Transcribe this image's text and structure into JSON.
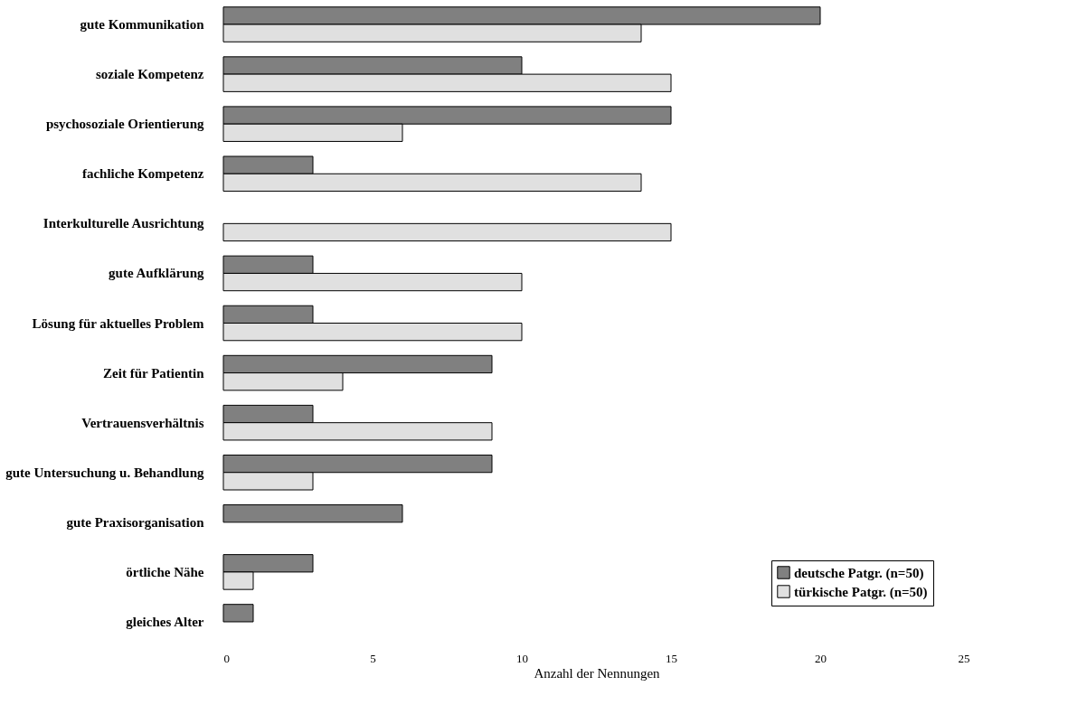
{
  "chart_data": {
    "type": "bar",
    "orientation": "horizontal",
    "xlabel": "Anzahl der Nennungen",
    "categories": [
      "gute Kommunikation",
      "soziale Kompetenz",
      "psychosoziale Orientierung",
      "fachliche Kompetenz",
      "Interkulturelle Ausrichtung",
      "gute Aufklärung",
      "Lösung für aktuelles Problem",
      "Zeit für Patientin",
      "Vertrauensverhältnis",
      "gute Untersuchung u. Behandlung",
      "gute Praxisorganisation",
      "örtliche Nähe",
      "gleiches Alter"
    ],
    "series": [
      {
        "name": "deutsche Patgr. (n=50)",
        "color": "#808080",
        "values": [
          20,
          10,
          15,
          3,
          0,
          3,
          3,
          9,
          3,
          9,
          6,
          3,
          1
        ]
      },
      {
        "name": "türkische Patgr. (n=50)",
        "color": "#e0e0e0",
        "values": [
          14,
          15,
          6,
          14,
          15,
          10,
          10,
          4,
          9,
          3,
          0,
          1,
          0
        ]
      }
    ],
    "xlim": [
      0,
      25
    ],
    "xticks": [
      0,
      5,
      10,
      15,
      20,
      25
    ],
    "grid": false,
    "legend": "bottom right"
  }
}
